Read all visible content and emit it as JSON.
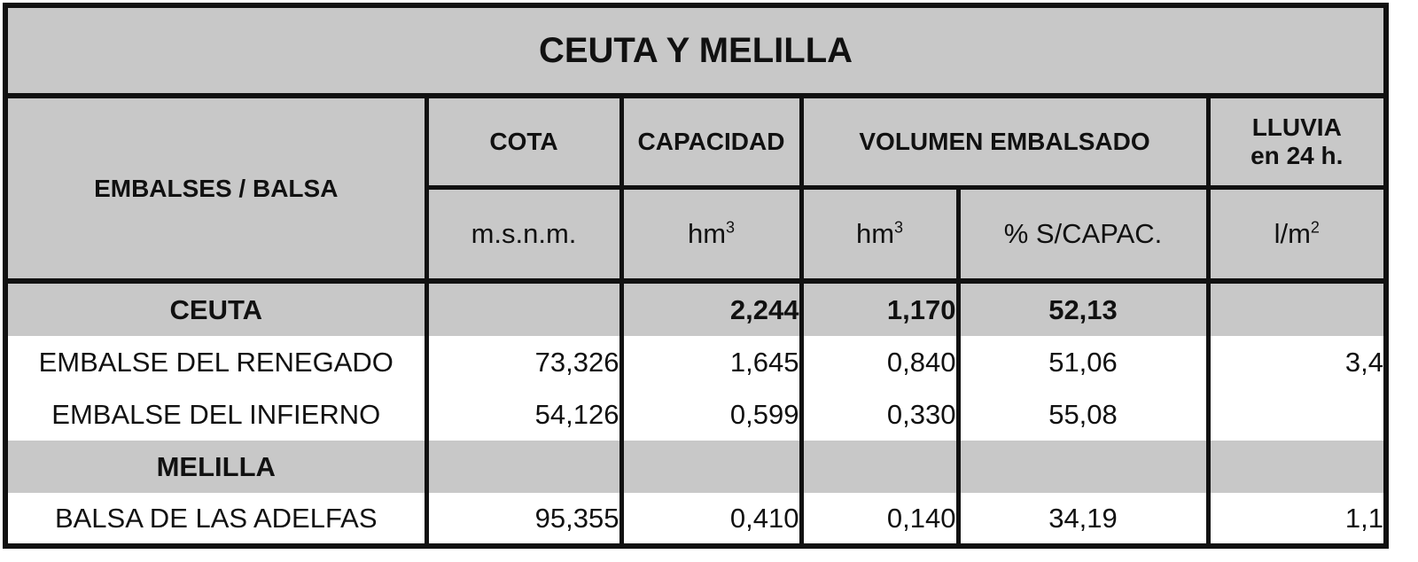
{
  "title": "CEUTA Y MELILLA",
  "headers": {
    "embalses": "EMBALSES / BALSA",
    "cota": "COTA",
    "capacidad": "CAPACIDAD",
    "volumen": "VOLUMEN EMBALSADO",
    "lluvia_1": "LLUVIA",
    "lluvia_2": "en 24 h.",
    "cota_unit": "m.s.n.m.",
    "capacidad_unit": "hm",
    "capacidad_unit_sup": "3",
    "volumen_unit": "hm",
    "volumen_unit_sup": "3",
    "porcentaje_unit": "% S/CAPAC.",
    "lluvia_unit": "l/m",
    "lluvia_unit_sup": "2"
  },
  "rows": [
    {
      "type": "group",
      "name": "CEUTA",
      "cota": "",
      "capacidad": "2,244",
      "volumen": "1,170",
      "porcentaje": "52,13",
      "lluvia": ""
    },
    {
      "type": "item",
      "name": "EMBALSE DEL RENEGADO",
      "cota": "73,326",
      "capacidad": "1,645",
      "volumen": "0,840",
      "porcentaje": "51,06",
      "lluvia": "3,4"
    },
    {
      "type": "item",
      "name": "EMBALSE DEL INFIERNO",
      "cota": "54,126",
      "capacidad": "0,599",
      "volumen": "0,330",
      "porcentaje": "55,08",
      "lluvia": ""
    },
    {
      "type": "group",
      "name": "MELILLA",
      "cota": "",
      "capacidad": "",
      "volumen": "",
      "porcentaje": "",
      "lluvia": ""
    },
    {
      "type": "item",
      "name": "BALSA DE LAS ADELFAS",
      "cota": "95,355",
      "capacidad": "0,410",
      "volumen": "0,140",
      "porcentaje": "34,19",
      "lluvia": "1,1"
    }
  ],
  "colors": {
    "header_bg": "#c8c8c8",
    "border": "#111111",
    "row_bg": "#ffffff"
  }
}
